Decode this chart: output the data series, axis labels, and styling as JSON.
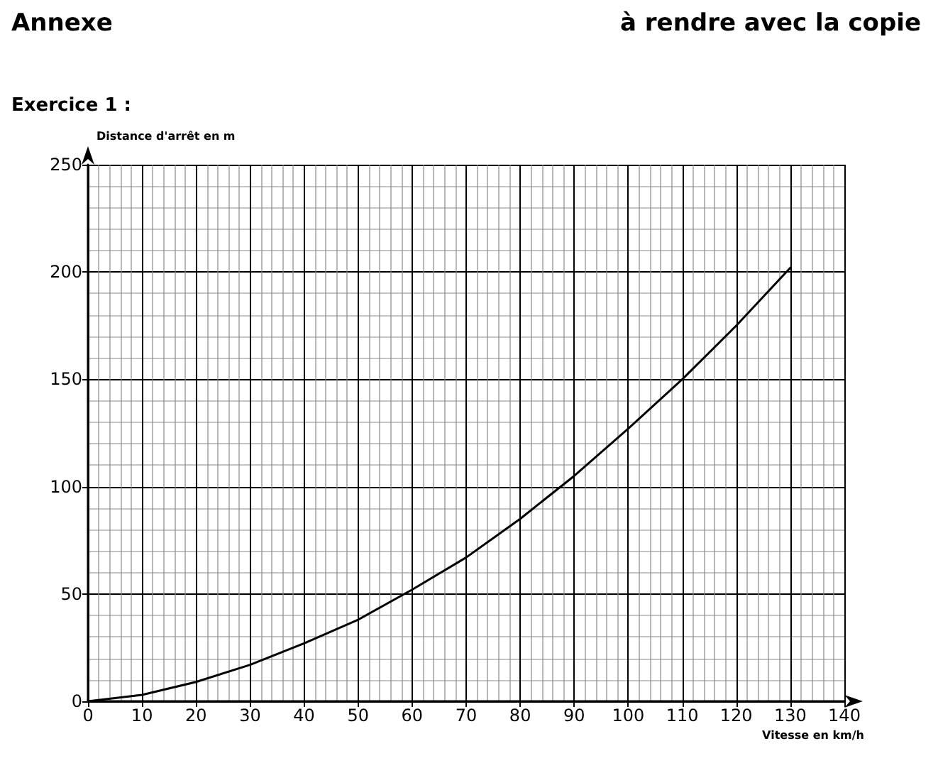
{
  "chart_data": {
    "type": "line",
    "title": "Annexe",
    "subtitle": "Exercice 1 :",
    "annotations": [
      "à rendre avec la copie"
    ],
    "xlabel": "Vitesse en km/h",
    "ylabel": "Distance d'arrêt en m",
    "x": [
      0,
      10,
      20,
      30,
      40,
      50,
      60,
      70,
      80,
      90,
      100,
      110,
      120,
      130
    ],
    "series": [
      {
        "color": "#000000",
        "values": [
          0,
          3,
          9,
          17,
          27,
          38,
          52,
          67,
          85,
          105,
          127,
          150,
          175,
          202
        ]
      }
    ],
    "xlim": [
      0,
      140
    ],
    "ylim": [
      0,
      250
    ],
    "xticks": [
      0,
      10,
      20,
      30,
      40,
      50,
      60,
      70,
      80,
      90,
      100,
      110,
      120,
      130,
      140
    ],
    "yticks": [
      0,
      50,
      100,
      150,
      200,
      250
    ],
    "grid": true,
    "marker": "none",
    "line_style": "solid"
  }
}
